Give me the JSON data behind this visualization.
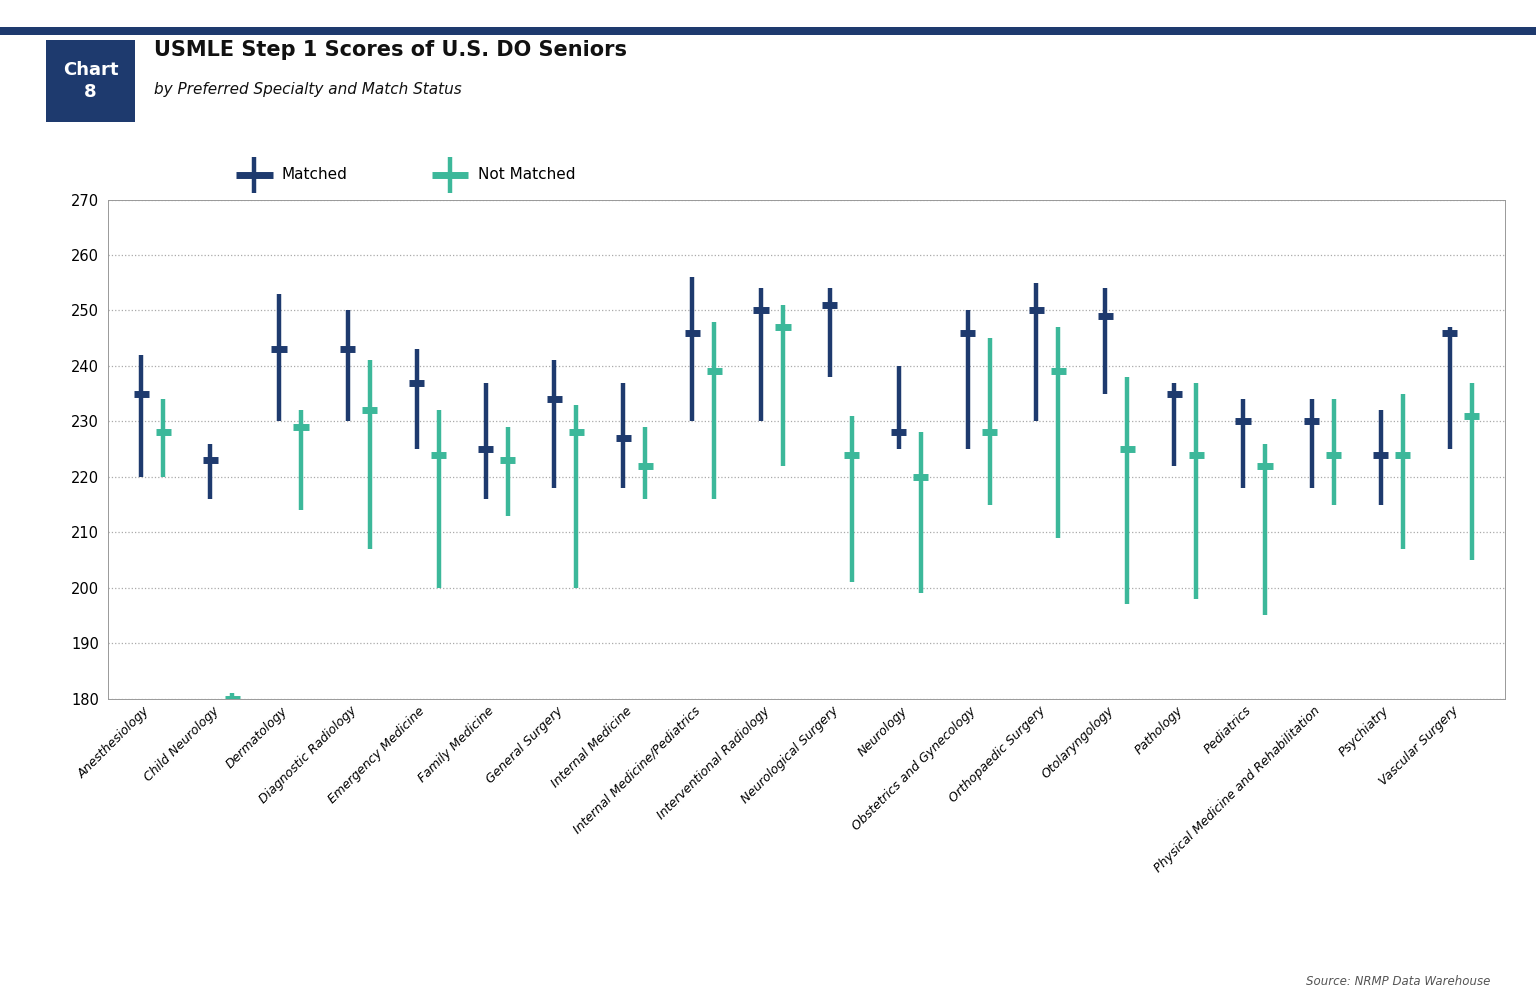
{
  "title_main": "USMLE Step 1 Scores of U.S. DO Seniors",
  "title_sub": "by Preferred Specialty and Match Status",
  "chart_num_line1": "Chart",
  "chart_num_line2": "8",
  "source": "Source: NRMP Data Warehouse",
  "ylim": [
    180,
    270
  ],
  "yticks": [
    180,
    190,
    200,
    210,
    220,
    230,
    240,
    250,
    260,
    270
  ],
  "color_matched": "#1e3a6e",
  "color_not_matched": "#3cb89a",
  "bg_color": "#ffffff",
  "header_bg": "#ffffff",
  "box_color": "#1e3a6e",
  "grid_color": "#aaaaaa",
  "specialties": [
    "Anesthesiology",
    "Child Neurology",
    "Dermatology",
    "Diagnostic Radiology",
    "Emergency Medicine",
    "Family Medicine",
    "General Surgery",
    "Internal Medicine",
    "Internal Medicine/Pediatrics",
    "Interventional Radiology",
    "Neurological Surgery",
    "Neurology",
    "Obstetrics and Gynecology",
    "Orthopaedic Surgery",
    "Otolaryngology",
    "Pathology",
    "Pediatrics",
    "Physical Medicine and Rehabilitation",
    "Psychiatry",
    "Vascular Surgery"
  ],
  "matched_low": [
    220,
    216,
    230,
    230,
    225,
    216,
    218,
    218,
    230,
    230,
    238,
    225,
    225,
    230,
    235,
    222,
    218,
    218,
    215,
    225
  ],
  "matched_med": [
    235,
    223,
    243,
    243,
    237,
    225,
    234,
    227,
    246,
    250,
    251,
    228,
    246,
    250,
    249,
    235,
    230,
    230,
    224,
    246
  ],
  "matched_high": [
    242,
    226,
    253,
    250,
    243,
    237,
    241,
    237,
    256,
    254,
    254,
    240,
    250,
    255,
    254,
    237,
    234,
    234,
    232,
    247
  ],
  "nm_low": [
    220,
    179,
    214,
    207,
    200,
    213,
    200,
    216,
    216,
    222,
    201,
    199,
    215,
    209,
    197,
    198,
    195,
    215,
    207,
    205
  ],
  "nm_med": [
    228,
    180,
    229,
    232,
    224,
    223,
    228,
    222,
    239,
    247,
    224,
    220,
    228,
    239,
    225,
    224,
    222,
    224,
    224,
    231
  ],
  "nm_high": [
    234,
    181,
    232,
    241,
    232,
    229,
    233,
    229,
    248,
    251,
    231,
    228,
    245,
    247,
    238,
    237,
    226,
    234,
    235,
    237
  ]
}
